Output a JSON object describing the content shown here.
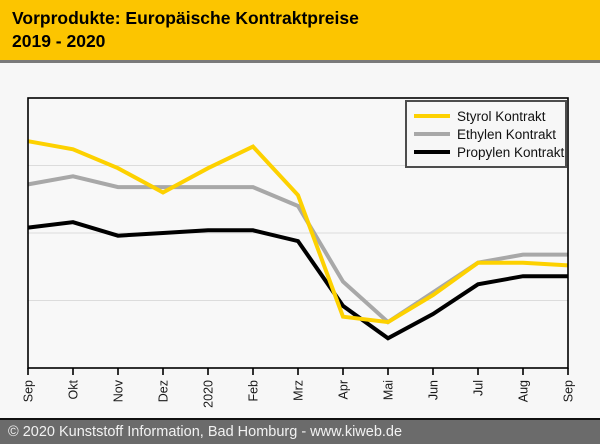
{
  "header": {
    "title_line1": "Vorprodukte: Europäische Kontraktpreise",
    "title_line2": "2019 - 2020"
  },
  "footer": {
    "text": "© 2020 Kunststoff Information, Bad Homburg - www.kiweb.de"
  },
  "colors": {
    "header_bg": "#fcc500",
    "styrol": "#fdd100",
    "ethylen": "#a8a8a8",
    "propylen": "#000000",
    "grid": "#dcdcdc",
    "axis": "#000000",
    "plot_bg": "#f8f8f8",
    "footer_bg": "#6b6b6b",
    "page_bg": "#f7f7f7"
  },
  "chart_data": {
    "type": "line",
    "title": "Vorprodukte: Europäische Kontraktpreise 2019 - 2020",
    "xlabel": "",
    "ylabel": "",
    "categories": [
      "Sep",
      "Okt",
      "Nov",
      "Dez",
      "2020",
      "Feb",
      "Mrz",
      "Apr",
      "Mai",
      "Jun",
      "Jul",
      "Aug",
      "Sep"
    ],
    "series": [
      {
        "name": "Propylen Kontrakt",
        "color_key": "propylen",
        "values": [
          52,
          54,
          49,
          50,
          51,
          51,
          47,
          23,
          11,
          20,
          31,
          34,
          34
        ]
      },
      {
        "name": "Ethylen Kontrakt",
        "color_key": "ethylen",
        "values": [
          68,
          71,
          67,
          67,
          67,
          67,
          60,
          32,
          17,
          28,
          39,
          42,
          42
        ]
      },
      {
        "name": "Styrol Kontrakt",
        "color_key": "styrol",
        "values": [
          84,
          81,
          74,
          65,
          74,
          82,
          64,
          19,
          17,
          27,
          39,
          39,
          38
        ]
      }
    ],
    "legend_order": [
      "Styrol Kontrakt",
      "Ethylen Kontrakt",
      "Propylen Kontrakt"
    ],
    "legend_position": "top-right",
    "y_axis_labels_visible": false,
    "ylim": [
      0,
      100
    ],
    "units": "relative scale (no y-axis labels shown in chart)",
    "gridlines_y_percent": [
      25,
      50,
      75
    ],
    "grid": "horizontal only"
  }
}
